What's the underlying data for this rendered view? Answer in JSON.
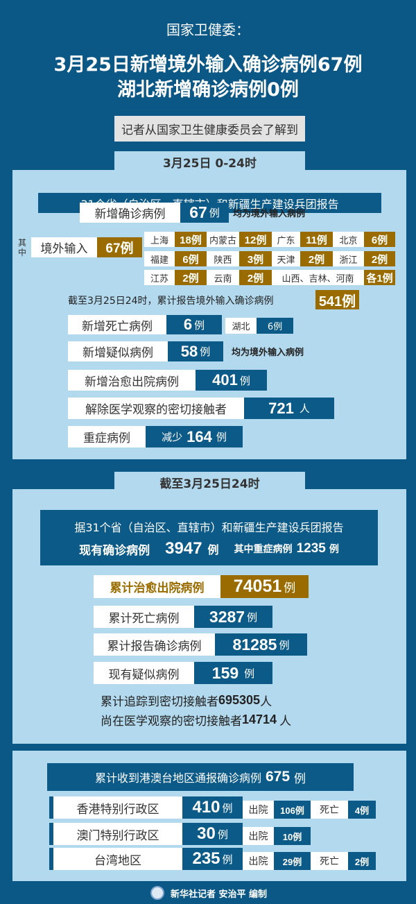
{
  "header": {
    "org": "国家卫健委：",
    "title_line1": "3月25日新增境外输入确诊病例67例",
    "title_line2": "湖北新增确诊病例0例",
    "subtitle": "记者从国家卫生健康委员会了解到"
  },
  "daily": {
    "tab": "3月25日 0-24时",
    "source": "31个省（自治区、直辖市）和新疆生产建设兵团报告",
    "new_confirmed": {
      "label": "新增确诊病例",
      "value": "67",
      "unit": "例",
      "note": "均为境外输入病例"
    },
    "of_which": "其中",
    "imported": {
      "label": "境外输入",
      "value": "67例"
    },
    "provinces": [
      {
        "name": "上海",
        "value": "18例"
      },
      {
        "name": "内蒙古",
        "value": "12例"
      },
      {
        "name": "广东",
        "value": "11例"
      },
      {
        "name": "北京",
        "value": "6例"
      },
      {
        "name": "福建",
        "value": "6例"
      },
      {
        "name": "陕西",
        "value": "3例"
      },
      {
        "name": "天津",
        "value": "2例"
      },
      {
        "name": "浙江",
        "value": "2例"
      },
      {
        "name": "江苏",
        "value": "2例"
      },
      {
        "name": "云南",
        "value": "2例"
      },
      {
        "name": "山西、吉林、河南",
        "value": "各1例"
      }
    ],
    "cumulative_imported": {
      "label": "截至3月25日24时，累计报告境外输入确诊病例",
      "value": "541例"
    },
    "new_deaths": {
      "label": "新增死亡病例",
      "value": "6",
      "unit": "例",
      "region": "湖北",
      "region_value": "6例"
    },
    "new_suspected": {
      "label": "新增疑似病例",
      "value": "58",
      "unit": "例",
      "note": "均为境外输入病例"
    },
    "new_recovered": {
      "label": "新增治愈出院病例",
      "value": "401",
      "unit": "例"
    },
    "released_contacts": {
      "label": "解除医学观察的密切接触者",
      "value": "721",
      "unit": "人"
    },
    "severe": {
      "label": "重症病例",
      "prefix": "减少",
      "value": "164",
      "unit": "例"
    }
  },
  "cumulative": {
    "tab": "截至3月25日24时",
    "source": "据31个省（自治区、直辖市）和新疆生产建设兵团报告",
    "current_confirmed": {
      "label": "现有确诊病例",
      "value": "3947",
      "unit": "例",
      "severe_label": "其中重症病例",
      "severe_value": "1235",
      "severe_unit": "例"
    },
    "recovered": {
      "label": "累计治愈出院病例",
      "value": "74051",
      "unit": "例"
    },
    "deaths": {
      "label": "累计死亡病例",
      "value": "3287",
      "unit": "例"
    },
    "confirmed": {
      "label": "累计报告确诊病例",
      "value": "81285",
      "unit": "例"
    },
    "suspected": {
      "label": "现有疑似病例",
      "value": "159",
      "unit": "例"
    },
    "traced": {
      "label": "累计追踪到密切接触者",
      "value": "695305",
      "unit": "人"
    },
    "observing": {
      "label": "尚在医学观察的密切接触者",
      "value": "14714",
      "unit": "人"
    }
  },
  "hmt": {
    "header_label": "累计收到港澳台地区通报确诊病例",
    "header_value": "675",
    "header_unit": "例",
    "regions": [
      {
        "name": "香港特别行政区",
        "value": "410",
        "unit": "例",
        "discharged_label": "出院",
        "discharged": "106例",
        "death_label": "死亡",
        "deaths": "4例"
      },
      {
        "name": "澳门特别行政区",
        "value": "30",
        "unit": "例",
        "discharged_label": "出院",
        "discharged": "10例"
      },
      {
        "name": "台湾地区",
        "value": "235",
        "unit": "例",
        "discharged_label": "出院",
        "discharged": "29例",
        "death_label": "死亡",
        "deaths": "2例"
      }
    ]
  },
  "footer": {
    "credit": "新华社记者 安治平 编制"
  },
  "colors": {
    "background": "#0b5886",
    "panel": "#b3d9ee",
    "blue": "#0c5a87",
    "gold": "#9a6c00"
  }
}
